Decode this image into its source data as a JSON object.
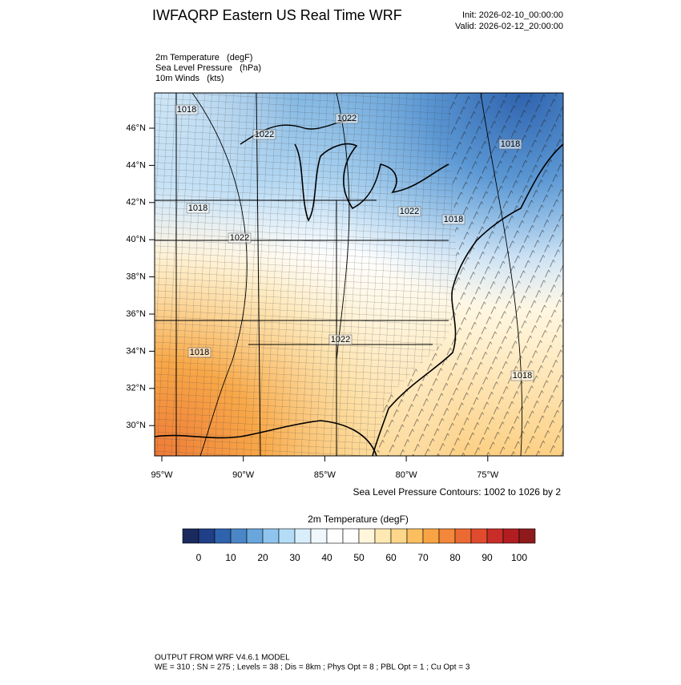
{
  "header": {
    "title": "IWFAQRP Eastern US Real Time WRF",
    "init": "Init: 2026-02-10_00:00:00",
    "valid": "Valid: 2026-02-12_20:00:00"
  },
  "fields": [
    "2m Temperature   (degF)",
    "Sea Level Pressure   (hPa)",
    "10m Winds   (kts)"
  ],
  "map": {
    "lat_labels": [
      "46°N",
      "44°N",
      "42°N",
      "40°N",
      "38°N",
      "36°N",
      "34°N",
      "32°N",
      "30°N"
    ],
    "lon_labels": [
      "95°W",
      "90°W",
      "85°W",
      "80°W",
      "75°W"
    ],
    "contour_labels": [
      "1018",
      "1022",
      "1022",
      "1018",
      "1018",
      "1022",
      "1022",
      "1018",
      "1022",
      "1018",
      "1018"
    ],
    "contour_note": "Sea Level Pressure Contours: 1002 to 1026 by 2"
  },
  "colorbar": {
    "title": "2m Temperature  (degF)",
    "colors": [
      "#1a2a5e",
      "#1f3f87",
      "#2f63ae",
      "#4b86c7",
      "#68a6dc",
      "#8ec5ee",
      "#b4dcf6",
      "#d8eefb",
      "#f1f8fd",
      "#ffffff",
      "#ffffff",
      "#fff6dc",
      "#ffe9b3",
      "#fdd68a",
      "#fbbf60",
      "#f8a444",
      "#f3873a",
      "#eb6a33",
      "#e04b2e",
      "#c92d28",
      "#b21d22",
      "#8e1a1c"
    ],
    "ticks": [
      0,
      10,
      20,
      30,
      40,
      50,
      60,
      70,
      80,
      90,
      100
    ]
  },
  "footer": {
    "line1": "OUTPUT FROM WRF V4.6.1 MODEL",
    "line2": "WE = 310 ; SN = 275 ; Levels = 38 ; Dis = 8km ; Phys Opt = 8 ; PBL Opt = 1 ; Cu Opt = 3"
  }
}
